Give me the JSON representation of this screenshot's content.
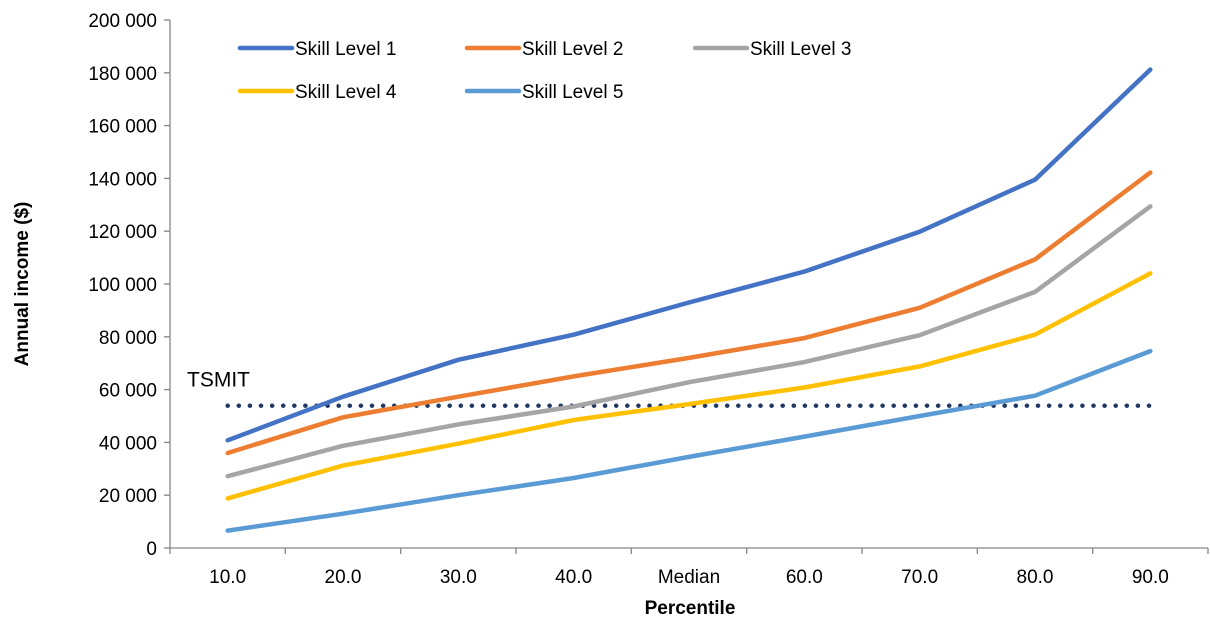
{
  "chart_data": {
    "type": "line",
    "title": "",
    "xlabel": "Percentile",
    "ylabel": "Annual income ($)",
    "categories": [
      "10.0",
      "20.0",
      "30.0",
      "40.0",
      "Median",
      "60.0",
      "70.0",
      "80.0",
      "90.0"
    ],
    "ylim": [
      0,
      200000
    ],
    "yticks": [
      0,
      20000,
      40000,
      60000,
      80000,
      100000,
      120000,
      140000,
      160000,
      180000,
      200000
    ],
    "ytick_labels": [
      "0",
      "20 000",
      "40 000",
      "60 000",
      "80 000",
      "100 000",
      "120 000",
      "140 000",
      "160 000",
      "180 000",
      "200 000"
    ],
    "grid": false,
    "legend_position": "top-left",
    "series": [
      {
        "name": "Skill Level 1",
        "color": "#4472C4",
        "values": [
          40800,
          57300,
          71300,
          80800,
          93000,
          104700,
          119800,
          139500,
          181200
        ]
      },
      {
        "name": "Skill Level 2",
        "color": "#ED7D31",
        "values": [
          36000,
          49500,
          57300,
          65000,
          72000,
          79500,
          91000,
          109300,
          142200
        ]
      },
      {
        "name": "Skill Level 3",
        "color": "#A5A5A5",
        "values": [
          27200,
          38700,
          46800,
          53600,
          62800,
          70400,
          80600,
          97000,
          129400
        ]
      },
      {
        "name": "Skill Level 4",
        "color": "#FFC000",
        "values": [
          18800,
          31200,
          39500,
          48500,
          54500,
          60800,
          68800,
          80800,
          104000
        ]
      },
      {
        "name": "Skill Level 5",
        "color": "#5B9BD5",
        "values": [
          6600,
          13000,
          20000,
          26500,
          34500,
          42200,
          50000,
          57700,
          74600
        ]
      }
    ],
    "annotations": [
      {
        "label": "TSMIT",
        "value": 53900,
        "style": "dotted",
        "color": "#203864"
      }
    ]
  }
}
